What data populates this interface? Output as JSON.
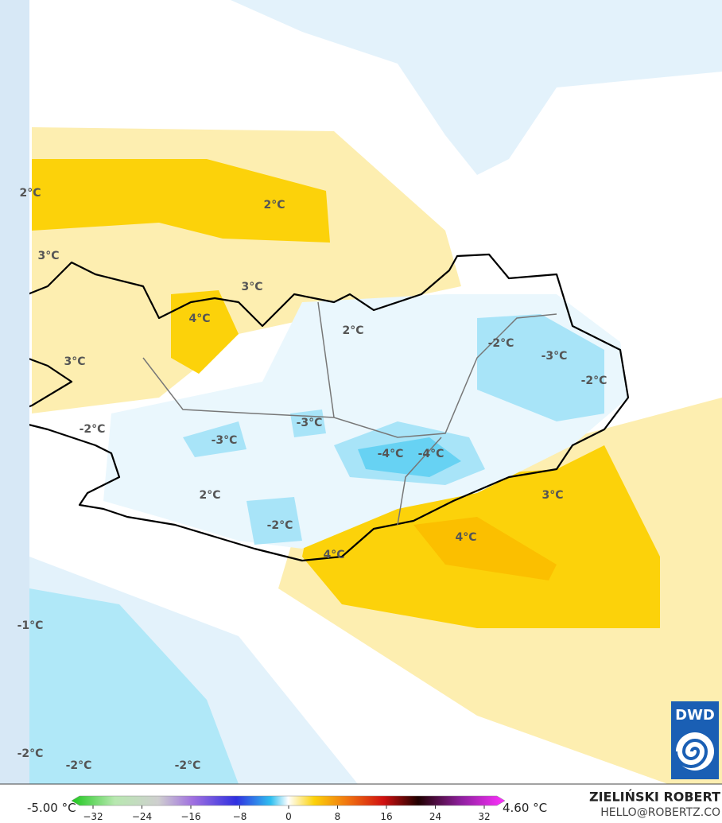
{
  "map": {
    "labels": [
      "2°C",
      "2°C",
      "3°C",
      "3°C",
      "4°C",
      "2°C",
      "3°C",
      "-2°C",
      "-3°C",
      "-2°C",
      "-2°C",
      "-3°C",
      "-3°C",
      "-4°C",
      "-4°C",
      "3°C",
      "2°C",
      "-2°C",
      "4°C",
      "4°C",
      "-1°C",
      "-2°C",
      "-2°C",
      "-2°C"
    ],
    "logo": "DWD"
  },
  "legend": {
    "min": "-5.00 °C",
    "max": "4.60 °C",
    "ticks": [
      "−32",
      "−24",
      "−16",
      "−8",
      "0",
      "8",
      "16",
      "24",
      "32"
    ]
  },
  "credits": {
    "author": "ZIELIŃSKI ROBERT",
    "contact": "HELLO@ROBERTZ.CO"
  }
}
